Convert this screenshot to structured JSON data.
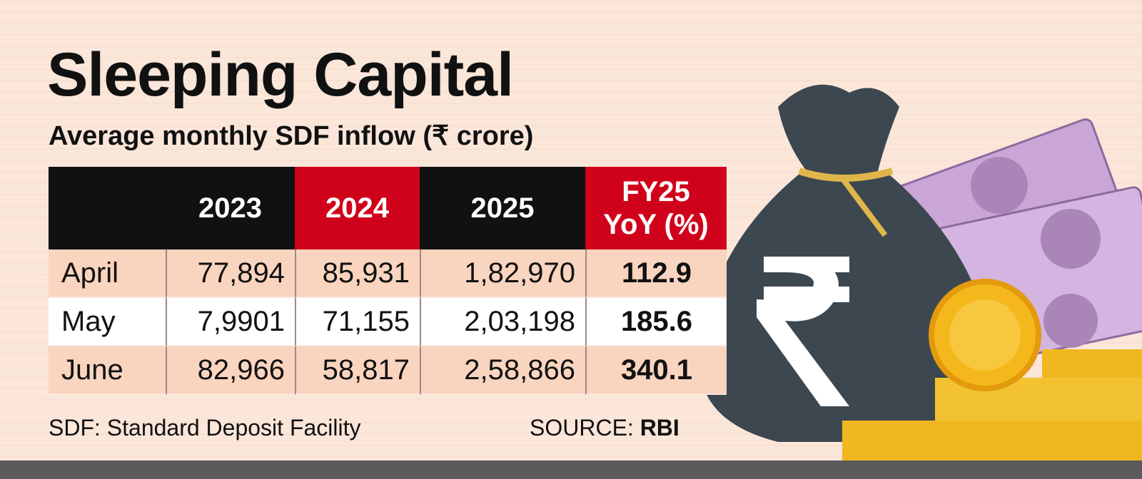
{
  "header": {
    "title": "Sleeping Capital",
    "subtitle": "Average monthly SDF inflow (₹ crore)"
  },
  "table": {
    "columns": [
      "",
      "2023",
      "2024",
      "2025",
      "FY25 YoY (%)"
    ],
    "rows": [
      [
        "April",
        "77,894",
        "85,931",
        "1,82,970",
        "112.9"
      ],
      [
        "May",
        "7,9901",
        "71,155",
        "2,03,198",
        "185.6"
      ],
      [
        "June",
        "82,966",
        "58,817",
        "2,58,866",
        "340.1"
      ]
    ]
  },
  "footer": {
    "note": "SDF: Standard Deposit Facility",
    "source_label": "SOURCE:",
    "source_value": "RBI"
  }
}
